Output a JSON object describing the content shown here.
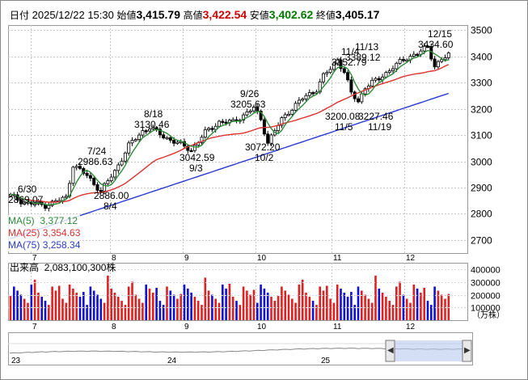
{
  "header": {
    "date_label": "日付",
    "datetime": "2025/12/22 15:30",
    "open_label": "始値",
    "open": "3,415.79",
    "high_label": "高値",
    "high": "3,422.54",
    "low_label": "安値",
    "low": "3,402.62",
    "close_label": "終値",
    "close": "3,405.17"
  },
  "moving_averages": [
    {
      "label": "MA(5)",
      "value": "3,377.12",
      "color": "#2e8b3a"
    },
    {
      "label": "MA(25)",
      "value": "3,354.63",
      "color": "#e03030"
    },
    {
      "label": "MA(75)",
      "value": "3,258.34",
      "color": "#2a3ad0"
    }
  ],
  "volume": {
    "label": "出来高",
    "value": "2,083,100,300株",
    "unit": "（万株）",
    "ticks": [
      "400000",
      "300000",
      "200000",
      "100000"
    ]
  },
  "colors": {
    "up": "#e02020",
    "down": "#1010d0",
    "ma5": "#2e8b3a",
    "ma25": "#e03030",
    "ma75": "#2a3ad0"
  },
  "chart_data": {
    "type": "candlestick",
    "ylim": [
      2650,
      3520
    ],
    "yticks": [
      2700,
      2800,
      2900,
      3000,
      3100,
      3200,
      3300,
      3400,
      3500
    ],
    "months": [
      "7",
      "8",
      "9",
      "10",
      "11",
      "12"
    ],
    "navigator_years": [
      "23",
      "24",
      "25"
    ],
    "annotations": [
      {
        "date": "6/30",
        "value": "2869.07"
      },
      {
        "date": "7/24",
        "value": "2986.63"
      },
      {
        "date": "8/4",
        "value": "2886.00"
      },
      {
        "date": "8/18",
        "value": "3130.46"
      },
      {
        "date": "9/3",
        "value": "3042.59"
      },
      {
        "date": "9/26",
        "value": "3205.63"
      },
      {
        "date": "10/2",
        "value": "3072.20"
      },
      {
        "date": "11/4",
        "value": "3352.79"
      },
      {
        "date": "11/13",
        "value": "3389.12"
      },
      {
        "date": "11/5",
        "value": "3200.08"
      },
      {
        "date": "11/19",
        "value": "3227.46"
      },
      {
        "date": "12/15",
        "value": "3434.60"
      }
    ]
  }
}
